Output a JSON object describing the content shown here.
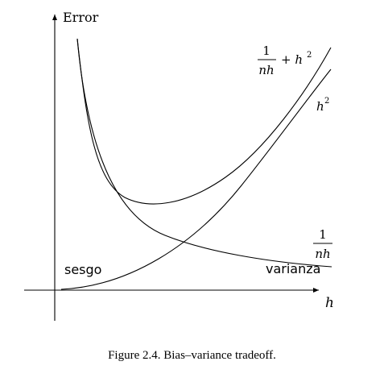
{
  "y_axis_label": "Error",
  "x_axis_label": "h",
  "labels": {
    "total": {
      "num": "1",
      "den": "nh",
      "plus": "+ h",
      "exp": "2"
    },
    "bias_sq": {
      "base": "h",
      "exp": "2"
    },
    "variance_frac": {
      "num": "1",
      "den": "nh"
    },
    "sesgo": "sesgo",
    "varianza": "varianza"
  },
  "caption": "Figure 2.4. Bias–variance tradeoff."
}
